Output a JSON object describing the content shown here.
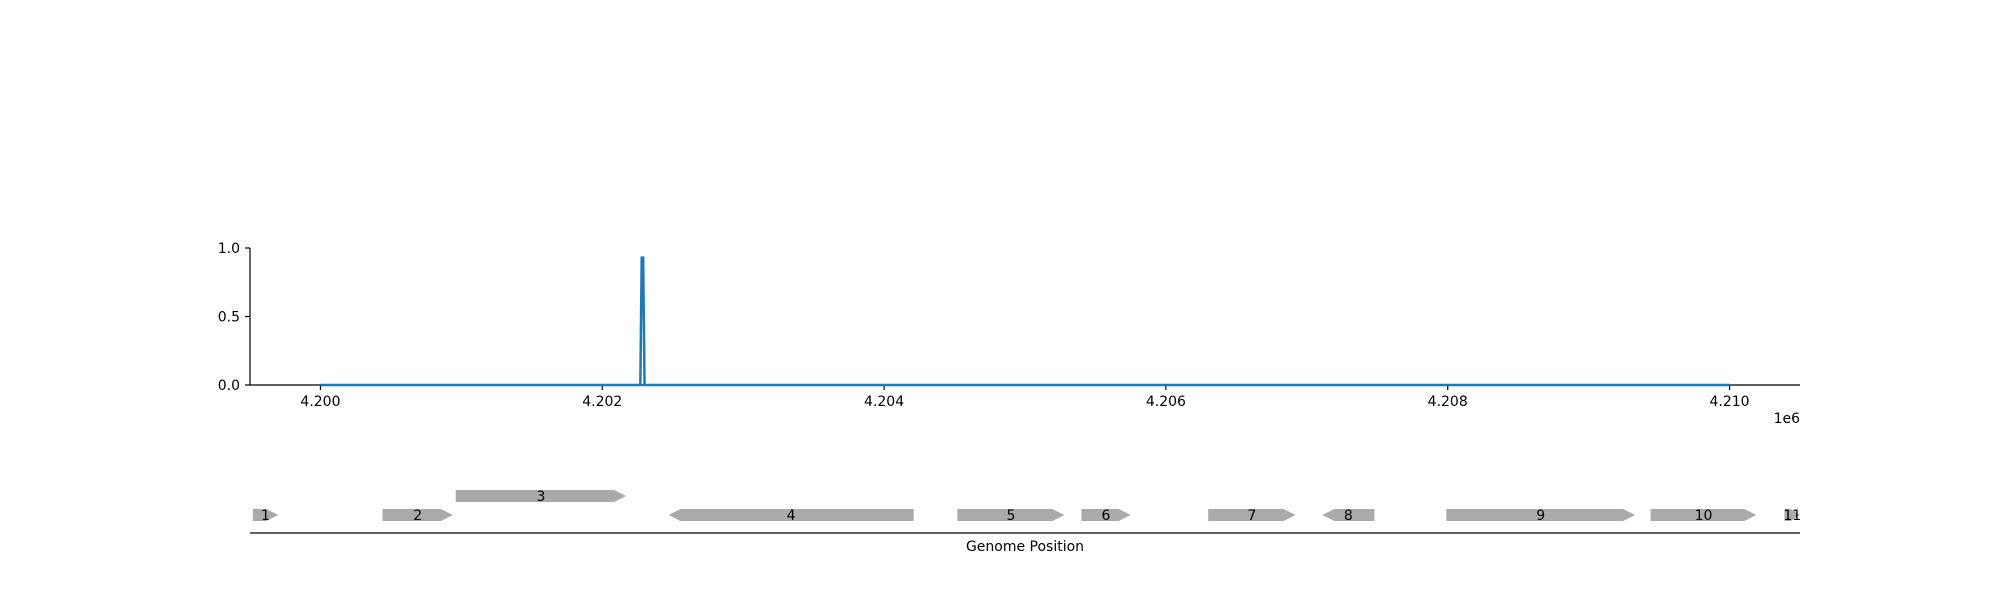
{
  "chart_data": [
    {
      "type": "line",
      "x": [
        4200000,
        4202270,
        4202280,
        4202290,
        4202300,
        4210000
      ],
      "series": [
        {
          "values": [
            0.0,
            0.0,
            0.93,
            0.93,
            0.0,
            0.0
          ]
        }
      ],
      "xlim": [
        4199500,
        4210500
      ],
      "ylim": [
        0.0,
        1.0
      ],
      "xticks": [
        4200000,
        4202000,
        4204000,
        4206000,
        4208000,
        4210000
      ],
      "xtick_labels": [
        "4.200",
        "4.202",
        "4.204",
        "4.206",
        "4.208",
        "4.210"
      ],
      "x_offset_label": "1e6",
      "yticks": [
        0.0,
        0.5,
        1.0
      ],
      "ytick_labels": [
        "0.0",
        "0.5",
        "1.0"
      ],
      "xlabel": "",
      "ylabel": "",
      "grid": false,
      "line_color": "#1f77b4"
    },
    {
      "type": "gene_map",
      "xlabel": "Genome Position",
      "xlim": [
        4199500,
        4210500
      ],
      "feature_color": "#aaaaaa",
      "genes": [
        {
          "label": "1",
          "start": 4199520,
          "end": 4199700,
          "strand": 1,
          "lane": 0
        },
        {
          "label": "2",
          "start": 4200440,
          "end": 4200940,
          "strand": 1,
          "lane": 0
        },
        {
          "label": "3",
          "start": 4200960,
          "end": 4202170,
          "strand": 1,
          "lane": 1
        },
        {
          "label": "4",
          "start": 4202470,
          "end": 4204210,
          "strand": -1,
          "lane": 0
        },
        {
          "label": "5",
          "start": 4204520,
          "end": 4205280,
          "strand": 1,
          "lane": 0
        },
        {
          "label": "6",
          "start": 4205400,
          "end": 4205750,
          "strand": 1,
          "lane": 0
        },
        {
          "label": "7",
          "start": 4206300,
          "end": 4206920,
          "strand": 1,
          "lane": 0
        },
        {
          "label": "8",
          "start": 4207110,
          "end": 4207480,
          "strand": -1,
          "lane": 0
        },
        {
          "label": "9",
          "start": 4207990,
          "end": 4209330,
          "strand": 1,
          "lane": 0
        },
        {
          "label": "10",
          "start": 4209440,
          "end": 4210190,
          "strand": 1,
          "lane": 0
        },
        {
          "label": "11",
          "start": 4210390,
          "end": 4210500,
          "strand": 1,
          "lane": 0
        }
      ]
    }
  ]
}
